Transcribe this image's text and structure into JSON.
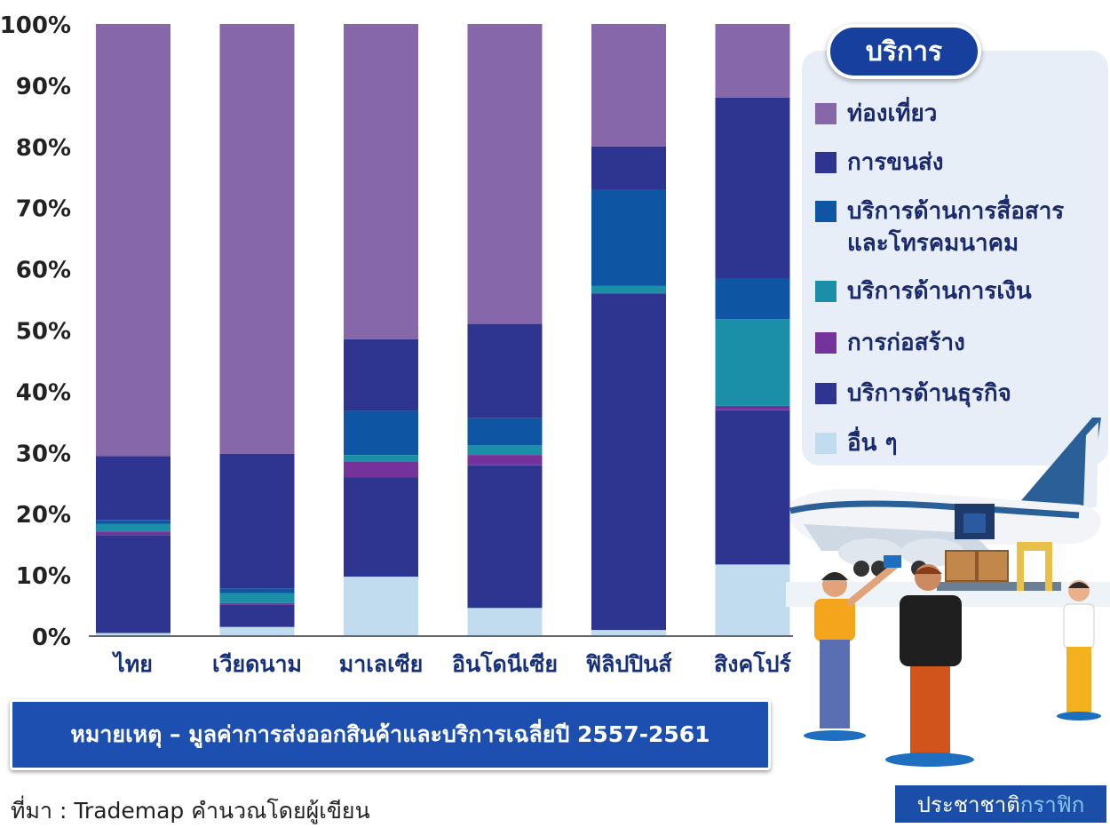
{
  "chart_data": {
    "type": "bar",
    "stacked": true,
    "percent": true,
    "categories": [
      "ไทย",
      "เวียดนาม",
      "มาเลเซีย",
      "อินโดนีเซีย",
      "ฟิลิปปินส์",
      "สิงคโปร์"
    ],
    "y_ticks": [
      "0%",
      "10%",
      "20%",
      "30%",
      "40%",
      "50%",
      "60%",
      "70%",
      "80%",
      "90%",
      "100%"
    ],
    "ylim": [
      0,
      100
    ],
    "grid": false,
    "legend_position": "right",
    "series": [
      {
        "name": "อื่น ๆ",
        "color": "#c2dcef",
        "values": [
          0.5,
          1.5,
          9.7,
          4.6,
          1.0,
          11.7
        ]
      },
      {
        "name": "บริการด้านธุรกิจ",
        "color": "#2e3590",
        "values": [
          16.0,
          3.6,
          16.2,
          23.3,
          55.0,
          25.2
        ]
      },
      {
        "name": "การก่อสร้าง",
        "color": "#74339a",
        "values": [
          0.6,
          0.3,
          2.6,
          1.7,
          0.0,
          0.7
        ]
      },
      {
        "name": "บริการด้านการเงิน",
        "color": "#1b8fa8",
        "values": [
          1.2,
          1.6,
          1.1,
          1.6,
          1.2,
          14.2
        ]
      },
      {
        "name": "บริการด้านการสื่อสาร\nและโทรคมนาคม",
        "color": "#0e56a4",
        "values": [
          0.6,
          0.8,
          7.2,
          4.4,
          15.8,
          6.7
        ]
      },
      {
        "name": "การขนส่ง",
        "color": "#2e3590",
        "values": [
          10.5,
          22.0,
          11.7,
          15.4,
          7.0,
          29.5
        ]
      },
      {
        "name": "ท่องเที่ยว",
        "color": "#8667aa",
        "values": [
          70.6,
          70.2,
          51.5,
          49.0,
          20.0,
          12.0
        ]
      }
    ]
  },
  "legend": {
    "title": "บริการ",
    "items": [
      {
        "label": "ท่องเที่ยว",
        "color": "#8667aa"
      },
      {
        "label": "การขนส่ง",
        "color": "#2e3590"
      },
      {
        "label": "บริการด้านการสื่อสาร\nและโทรคมนาคม",
        "color": "#0e56a4"
      },
      {
        "label": "บริการด้านการเงิน",
        "color": "#1b8fa8"
      },
      {
        "label": "การก่อสร้าง",
        "color": "#74339a"
      },
      {
        "label": "บริการด้านธุรกิจ",
        "color": "#2e3590"
      },
      {
        "label": "อื่น ๆ",
        "color": "#c2dcef"
      }
    ]
  },
  "note": "หมายเหตุ – มูลค่าการส่งออกสินค้าและบริการเฉลี่ยปี 2557-2561",
  "source": "ที่มา : Trademap คำนวณโดยผู้เขียน",
  "brand": {
    "part1": "ประชาชาติ",
    "part2": "กราฟิก"
  }
}
